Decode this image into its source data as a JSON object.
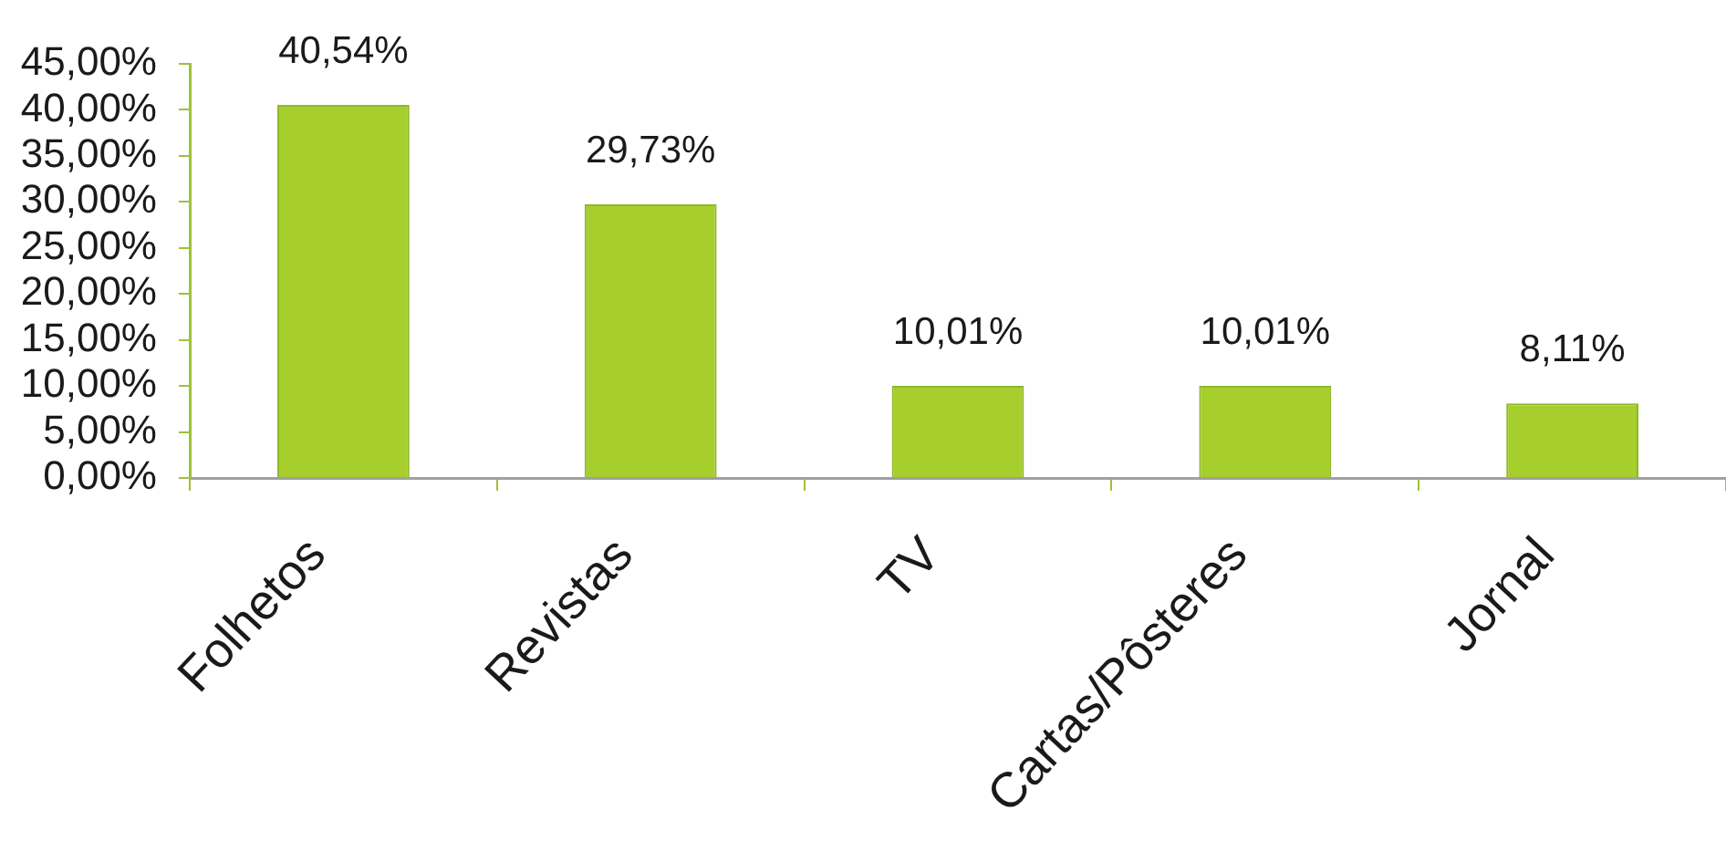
{
  "chart_data": {
    "type": "bar",
    "categories": [
      "Folhetos",
      "Revistas",
      "TV",
      "Cartas/Pôsteres",
      "Jornal"
    ],
    "values": [
      40.54,
      29.73,
      10.01,
      10.01,
      8.11
    ],
    "value_labels": [
      "40,54%",
      "29,73%",
      "10,01%",
      "10,01%",
      "8,11%"
    ],
    "color": "#a6cf2e",
    "ylim": [
      0,
      45
    ],
    "yticks": [
      {
        "value": 0,
        "label": "0,00%"
      },
      {
        "value": 5,
        "label": "5,00%"
      },
      {
        "value": 10,
        "label": "10,00%"
      },
      {
        "value": 15,
        "label": "15,00%"
      },
      {
        "value": 20,
        "label": "20,00%"
      },
      {
        "value": 25,
        "label": "25,00%"
      },
      {
        "value": 30,
        "label": "30,00%"
      },
      {
        "value": 35,
        "label": "35,00%"
      },
      {
        "value": 40,
        "label": "40,00%"
      },
      {
        "value": 45,
        "label": "45,00%"
      }
    ]
  }
}
